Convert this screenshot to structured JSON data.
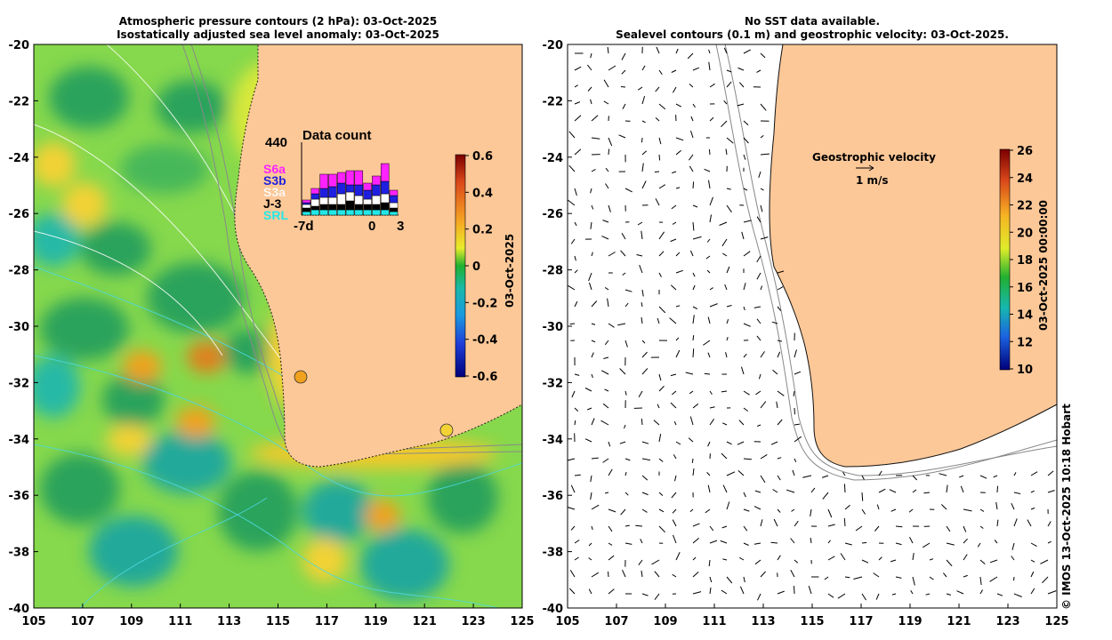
{
  "left_panel": {
    "title_line1": "Atmospheric pressure contours (2 hPa): 03-Oct-2025",
    "title_line2": "Isostatically adjusted sea level anomaly: 03-Oct-2025",
    "x_ticks": [
      "105",
      "107",
      "109",
      "111",
      "113",
      "115",
      "117",
      "119",
      "121",
      "123",
      "125"
    ],
    "y_ticks": [
      "-20",
      "-22",
      "-24",
      "-26",
      "-28",
      "-30",
      "-32",
      "-34",
      "-36",
      "-38",
      "-40"
    ],
    "colorbar": {
      "ticks": [
        "0.6",
        "0.4",
        "0.2",
        "0",
        "-0.2",
        "-0.4",
        "-0.6"
      ],
      "date_label": "03-Oct-2025"
    },
    "data_count": {
      "title": "Data count",
      "max_label": "440",
      "x_labels": [
        "-7d",
        "0",
        "3"
      ],
      "missions": [
        {
          "name": "S6a",
          "color": "#ff22ff"
        },
        {
          "name": "S3b",
          "color": "#1f1fe0"
        },
        {
          "name": "S3a",
          "color": "#ffffff"
        },
        {
          "name": "J-3",
          "color": "#000000"
        },
        {
          "name": "SRL",
          "color": "#22e8e8"
        }
      ]
    }
  },
  "right_panel": {
    "title_line1": "No SST data available.",
    "title_line2": "Sealevel contours (0.1 m) and geostrophic velocity: 03-Oct-2025.",
    "x_ticks": [
      "105",
      "107",
      "109",
      "111",
      "113",
      "115",
      "117",
      "119",
      "121",
      "123",
      "125"
    ],
    "y_ticks": [
      "-20",
      "-22",
      "-24",
      "-26",
      "-28",
      "-30",
      "-32",
      "-34",
      "-36",
      "-38",
      "-40"
    ],
    "legend_title": "Geostrophic velocity",
    "legend_scale": "1 m/s",
    "colorbar": {
      "ticks": [
        "26",
        "24",
        "22",
        "20",
        "18",
        "16",
        "14",
        "12",
        "10"
      ],
      "date_label": "03-Oct-2025 00:00:00"
    }
  },
  "credit": "© IMOS 13-Oct-2025 10:18 Hobart",
  "colors": {
    "land": "#fdc898",
    "ocean_mid": "#7ed84e",
    "ocean_high": "#f2e23a",
    "ocean_low": "#2aa35b"
  }
}
